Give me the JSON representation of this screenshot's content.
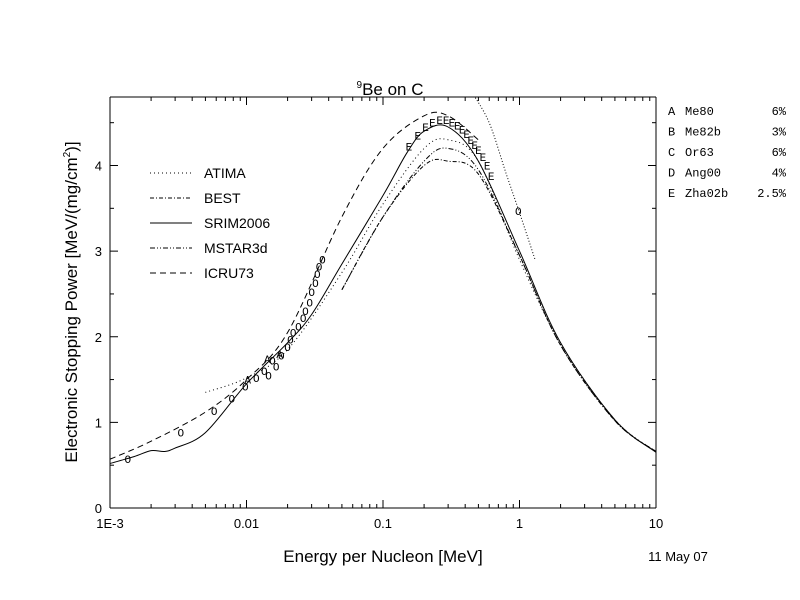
{
  "chart_data": {
    "type": "line",
    "title_sup": "9",
    "title": "Be on C",
    "xlabel": "Energy per Nucleon [MeV]",
    "ylabel": "Electronic Stopping Power [MeV/(mg/cm",
    "ylabel_sup": "2",
    "ylabel_end": ")]",
    "xscale": "log",
    "xlim": [
      0.001,
      10
    ],
    "ylim": [
      0,
      4.8
    ],
    "x_ticks": [
      {
        "value": 0.001,
        "label": "1E-3"
      },
      {
        "value": 0.01,
        "label": "0.01"
      },
      {
        "value": 0.1,
        "label": "0.1"
      },
      {
        "value": 1,
        "label": "1"
      },
      {
        "value": 10,
        "label": "10"
      }
    ],
    "y_ticks": [
      {
        "value": 0,
        "label": "0"
      },
      {
        "value": 1,
        "label": "1"
      },
      {
        "value": 2,
        "label": "2"
      },
      {
        "value": 3,
        "label": "3"
      },
      {
        "value": 4,
        "label": "4"
      }
    ],
    "legend_position": "upper-left",
    "series": [
      {
        "name": "ATIMA",
        "dash": "1,3",
        "x": [
          0.005,
          0.01,
          0.02,
          0.05,
          0.1,
          0.2,
          0.3,
          0.5,
          1,
          2,
          5,
          10
        ],
        "y": [
          1.35,
          1.52,
          1.85,
          2.75,
          3.55,
          4.2,
          4.3,
          4.05,
          2.9,
          1.92,
          1.03,
          0.66
        ]
      },
      {
        "name": "BEST",
        "dash": "4,2,1,2",
        "x": [
          0.05,
          0.1,
          0.2,
          0.3,
          0.5,
          1,
          2,
          5,
          10
        ],
        "y": [
          2.55,
          3.4,
          4.0,
          4.05,
          3.9,
          2.95,
          1.9,
          1.02,
          0.66
        ]
      },
      {
        "name": "SRIM2006",
        "dash": "",
        "x": [
          0.001,
          0.0015,
          0.002,
          0.0025,
          0.003,
          0.005,
          0.01,
          0.02,
          0.03,
          0.05,
          0.1,
          0.15,
          0.2,
          0.3,
          0.5,
          1,
          2,
          5,
          10
        ],
        "y": [
          0.52,
          0.6,
          0.67,
          0.66,
          0.7,
          0.88,
          1.45,
          1.93,
          2.26,
          2.85,
          3.65,
          4.15,
          4.4,
          4.45,
          4.05,
          3.0,
          1.93,
          1.03,
          0.65
        ]
      },
      {
        "name": "MSTAR3d",
        "dash": "5,2,1,2,1,2",
        "x": [
          0.05,
          0.1,
          0.2,
          0.3,
          0.5,
          1,
          2,
          5,
          10
        ],
        "y": [
          2.55,
          3.4,
          4.05,
          4.2,
          3.95,
          2.95,
          1.9,
          1.02,
          0.66
        ]
      },
      {
        "name": "ICRU73",
        "dash": "6,4",
        "x": [
          0.001,
          0.002,
          0.005,
          0.01,
          0.02,
          0.05,
          0.1,
          0.2,
          0.3,
          0.5
        ],
        "y": [
          0.57,
          0.78,
          1.12,
          1.5,
          2.05,
          3.4,
          4.2,
          4.58,
          4.58,
          4.3
        ]
      },
      {
        "name": "",
        "dash": "1,2",
        "x": [
          0.45,
          0.6,
          0.8,
          1.0,
          1.3
        ],
        "y": [
          4.85,
          4.5,
          3.9,
          3.45,
          2.9
        ]
      }
    ],
    "data_points": [
      {
        "marker": "O",
        "x": 0.00135,
        "y": 0.57
      },
      {
        "marker": "O",
        "x": 0.0033,
        "y": 0.88
      },
      {
        "marker": "O",
        "x": 0.0058,
        "y": 1.13
      },
      {
        "marker": "O",
        "x": 0.0078,
        "y": 1.28
      },
      {
        "marker": "O",
        "x": 0.0098,
        "y": 1.42
      },
      {
        "marker": "O",
        "x": 0.0118,
        "y": 1.52
      },
      {
        "marker": "O",
        "x": 0.0135,
        "y": 1.6
      },
      {
        "marker": "O",
        "x": 0.0145,
        "y": 1.55
      },
      {
        "marker": "O",
        "x": 0.0155,
        "y": 1.72
      },
      {
        "marker": "O",
        "x": 0.0165,
        "y": 1.65
      },
      {
        "marker": "O",
        "x": 0.018,
        "y": 1.78
      },
      {
        "marker": "O",
        "x": 0.02,
        "y": 1.88
      },
      {
        "marker": "O",
        "x": 0.021,
        "y": 1.97
      },
      {
        "marker": "O",
        "x": 0.022,
        "y": 2.05
      },
      {
        "marker": "O",
        "x": 0.024,
        "y": 2.12
      },
      {
        "marker": "O",
        "x": 0.026,
        "y": 2.22
      },
      {
        "marker": "O",
        "x": 0.027,
        "y": 2.3
      },
      {
        "marker": "O",
        "x": 0.029,
        "y": 2.4
      },
      {
        "marker": "O",
        "x": 0.03,
        "y": 2.52
      },
      {
        "marker": "O",
        "x": 0.032,
        "y": 2.63
      },
      {
        "marker": "O",
        "x": 0.033,
        "y": 2.73
      },
      {
        "marker": "O",
        "x": 0.034,
        "y": 2.82
      },
      {
        "marker": "O",
        "x": 0.036,
        "y": 2.9
      },
      {
        "marker": "O",
        "x": 0.98,
        "y": 3.47
      },
      {
        "marker": "A",
        "x": 0.0102,
        "y": 1.5
      },
      {
        "marker": "A",
        "x": 0.0142,
        "y": 1.74
      },
      {
        "marker": "A",
        "x": 0.0175,
        "y": 1.8
      },
      {
        "marker": "E",
        "x": 0.155,
        "y": 4.22
      },
      {
        "marker": "E",
        "x": 0.18,
        "y": 4.35
      },
      {
        "marker": "E",
        "x": 0.205,
        "y": 4.45
      },
      {
        "marker": "E",
        "x": 0.23,
        "y": 4.5
      },
      {
        "marker": "E",
        "x": 0.26,
        "y": 4.53
      },
      {
        "marker": "E",
        "x": 0.29,
        "y": 4.53
      },
      {
        "marker": "E",
        "x": 0.32,
        "y": 4.5
      },
      {
        "marker": "E",
        "x": 0.35,
        "y": 4.47
      },
      {
        "marker": "E",
        "x": 0.38,
        "y": 4.42
      },
      {
        "marker": "E",
        "x": 0.41,
        "y": 4.37
      },
      {
        "marker": "E",
        "x": 0.44,
        "y": 4.3
      },
      {
        "marker": "E",
        "x": 0.47,
        "y": 4.24
      },
      {
        "marker": "E",
        "x": 0.5,
        "y": 4.18
      },
      {
        "marker": "E",
        "x": 0.54,
        "y": 4.1
      },
      {
        "marker": "E",
        "x": 0.58,
        "y": 4.0
      },
      {
        "marker": "E",
        "x": 0.62,
        "y": 3.88
      }
    ],
    "references": [
      {
        "key": "A",
        "name": "Me80",
        "error": "6%"
      },
      {
        "key": "B",
        "name": "Me82b",
        "error": "3%"
      },
      {
        "key": "C",
        "name": "Or63",
        "error": "6%"
      },
      {
        "key": "D",
        "name": "Ang00",
        "error": "4%"
      },
      {
        "key": "E",
        "name": "Zha02b",
        "error": "2.5%"
      }
    ],
    "date": "11 May 07"
  }
}
